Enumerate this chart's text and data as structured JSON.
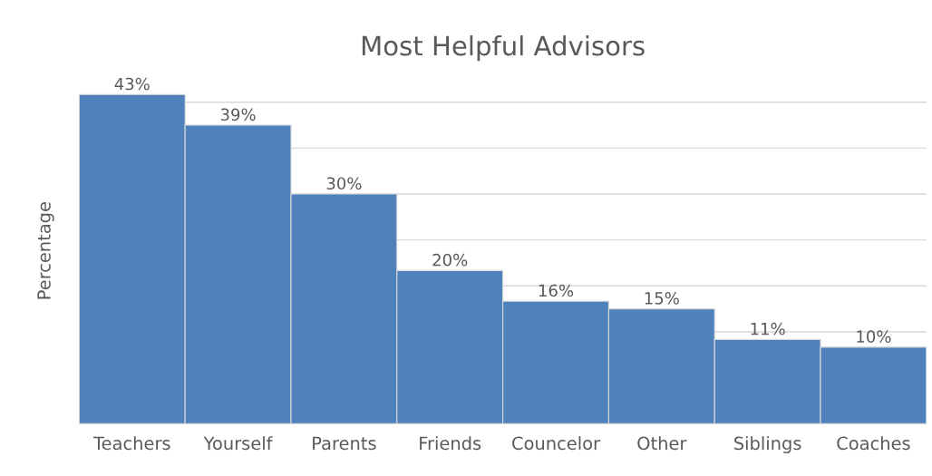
{
  "chart_data": {
    "type": "bar",
    "title": "Most Helpful Advisors",
    "ylabel": "Percentage",
    "categories": [
      "Teachers",
      "Yourself",
      "Parents",
      "Friends",
      "Councelor",
      "Other",
      "Siblings",
      "Coaches"
    ],
    "values": [
      43,
      39,
      30,
      20,
      16,
      15,
      11,
      10
    ],
    "value_labels": [
      "43%",
      "39%",
      "30%",
      "20%",
      "16%",
      "15%",
      "11%",
      "10%"
    ],
    "color": "#4f81bd",
    "grid": "y",
    "tick_labels": "x"
  }
}
